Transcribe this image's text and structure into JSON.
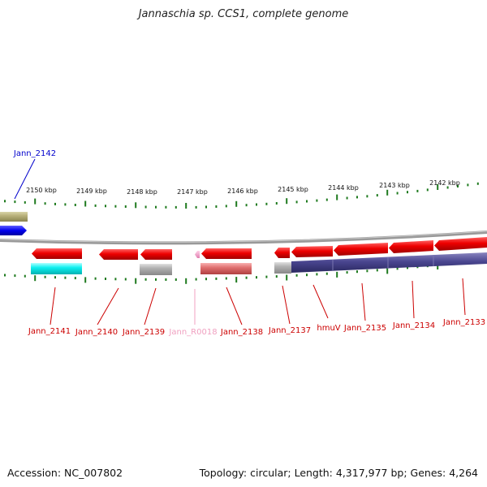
{
  "title": "Jannaschia sp. CCS1, complete genome",
  "footer": {
    "accession": "Accession: NC_007802",
    "summary": "Topology: circular; Length: 4,317,977 bp; Genes: 4,264"
  },
  "colors": {
    "backbone": "#808080",
    "tick": "#1e7a1e",
    "gene_red": "#e8000a",
    "gene_blue": "#0000ee",
    "label_red": "#cc0000",
    "label_blue": "#0000cc",
    "label_pink": "#f0a0c0"
  },
  "scale_labels": [
    {
      "text": "2150 kbp"
    },
    {
      "text": "2149 kbp"
    },
    {
      "text": "2148 kbp"
    },
    {
      "text": "2147 kbp"
    },
    {
      "text": "2146 kbp"
    },
    {
      "text": "2145 kbp"
    },
    {
      "text": "2144 kbp"
    },
    {
      "text": "2143 kbp"
    },
    {
      "text": "2142 kbp"
    }
  ],
  "genes": [
    {
      "label": "Jann_2142",
      "strand": "+",
      "color": "#0000ee",
      "label_color": "#0000cc"
    },
    {
      "label": "Jann_2141",
      "strand": "-",
      "color": "#e8000a",
      "label_color": "#cc0000"
    },
    {
      "label": "Jann_2140",
      "strand": "-",
      "color": "#e8000a",
      "label_color": "#cc0000"
    },
    {
      "label": "Jann_2139",
      "strand": "-",
      "color": "#e8000a",
      "label_color": "#cc0000"
    },
    {
      "label": "Jann_R0018",
      "strand": "-",
      "color": "#f4a0c8",
      "label_color": "#f0a0c0"
    },
    {
      "label": "Jann_2138",
      "strand": "-",
      "color": "#e8000a",
      "label_color": "#cc0000"
    },
    {
      "label": "Jann_2137",
      "strand": "-",
      "color": "#e8000a",
      "label_color": "#cc0000"
    },
    {
      "label": "hmuV",
      "strand": "-",
      "color": "#e8000a",
      "label_color": "#cc0000"
    },
    {
      "label": "Jann_2135",
      "strand": "-",
      "color": "#e8000a",
      "label_color": "#cc0000"
    },
    {
      "label": "Jann_2134",
      "strand": "-",
      "color": "#e8000a",
      "label_color": "#cc0000"
    },
    {
      "label": "Jann_2133",
      "strand": "-",
      "color": "#e8000a",
      "label_color": "#cc0000"
    }
  ]
}
